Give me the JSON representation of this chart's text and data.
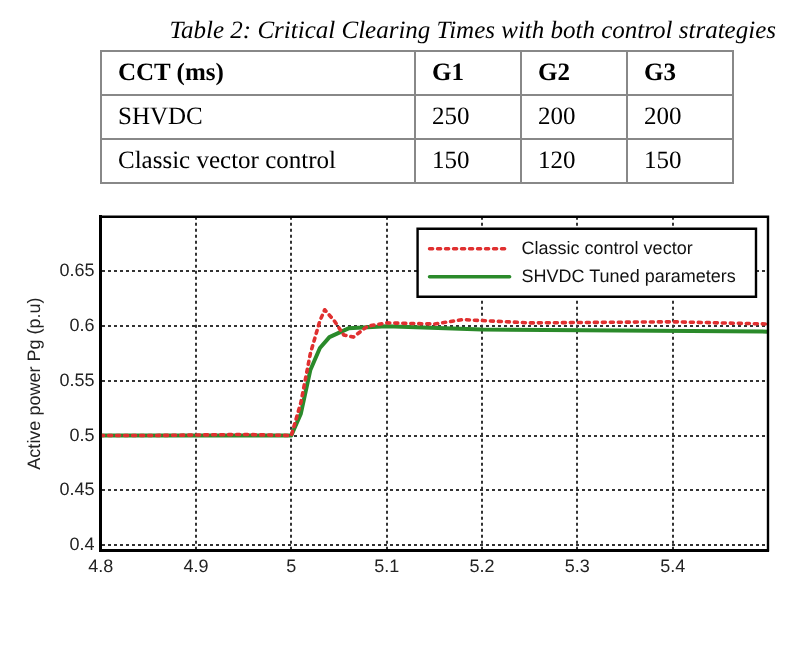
{
  "chart_data": [
    {
      "type": "other",
      "title": "Table 2: Critical Clearing Times with both control strategies",
      "annotations": [
        "CCT (ms)"
      ],
      "categories": [
        "G1",
        "G2",
        "G3"
      ],
      "data_labels": true,
      "series": [
        {
          "name": "SHVDC",
          "values": [
            250,
            200,
            200
          ]
        },
        {
          "name": "Classic vector control",
          "values": [
            150,
            120,
            150
          ]
        }
      ]
    },
    {
      "type": "line",
      "ylabel": "Active power Pg (p.u)",
      "xlim": [
        4.8,
        5.5
      ],
      "xticks": [
        4.8,
        4.9,
        5,
        5.1,
        5.2,
        5.3,
        5.4
      ],
      "ylim": [
        0.395,
        0.7
      ],
      "yticks": [
        0.4,
        0.45,
        0.5,
        0.55,
        0.6,
        0.65
      ],
      "grid": true,
      "legend": "top right",
      "marker": "none",
      "series": [
        {
          "name": "Classic control vector",
          "color": "#e03030",
          "line_style": "dotted",
          "x": [
            4.8,
            4.85,
            4.95,
            5,
            5.01,
            5.02,
            5.03,
            5.035,
            5.045,
            5.055,
            5.065,
            5.08,
            5.1,
            5.15,
            5.18,
            5.25,
            5.4,
            5.5
          ],
          "values": [
            0.5,
            0.5,
            0.501,
            0.5,
            0.53,
            0.575,
            0.605,
            0.615,
            0.605,
            0.592,
            0.59,
            0.6,
            0.603,
            0.602,
            0.606,
            0.603,
            0.604,
            0.602
          ]
        },
        {
          "name": "SHVDC Tuned parameters",
          "color": "#2a8a2a",
          "line_style": "solid",
          "x": [
            4.8,
            5,
            5.01,
            5.02,
            5.03,
            5.04,
            5.06,
            5.1,
            5.2,
            5.5
          ],
          "values": [
            0.5,
            0.5,
            0.52,
            0.56,
            0.58,
            0.59,
            0.598,
            0.6,
            0.597,
            0.595
          ]
        }
      ]
    }
  ]
}
